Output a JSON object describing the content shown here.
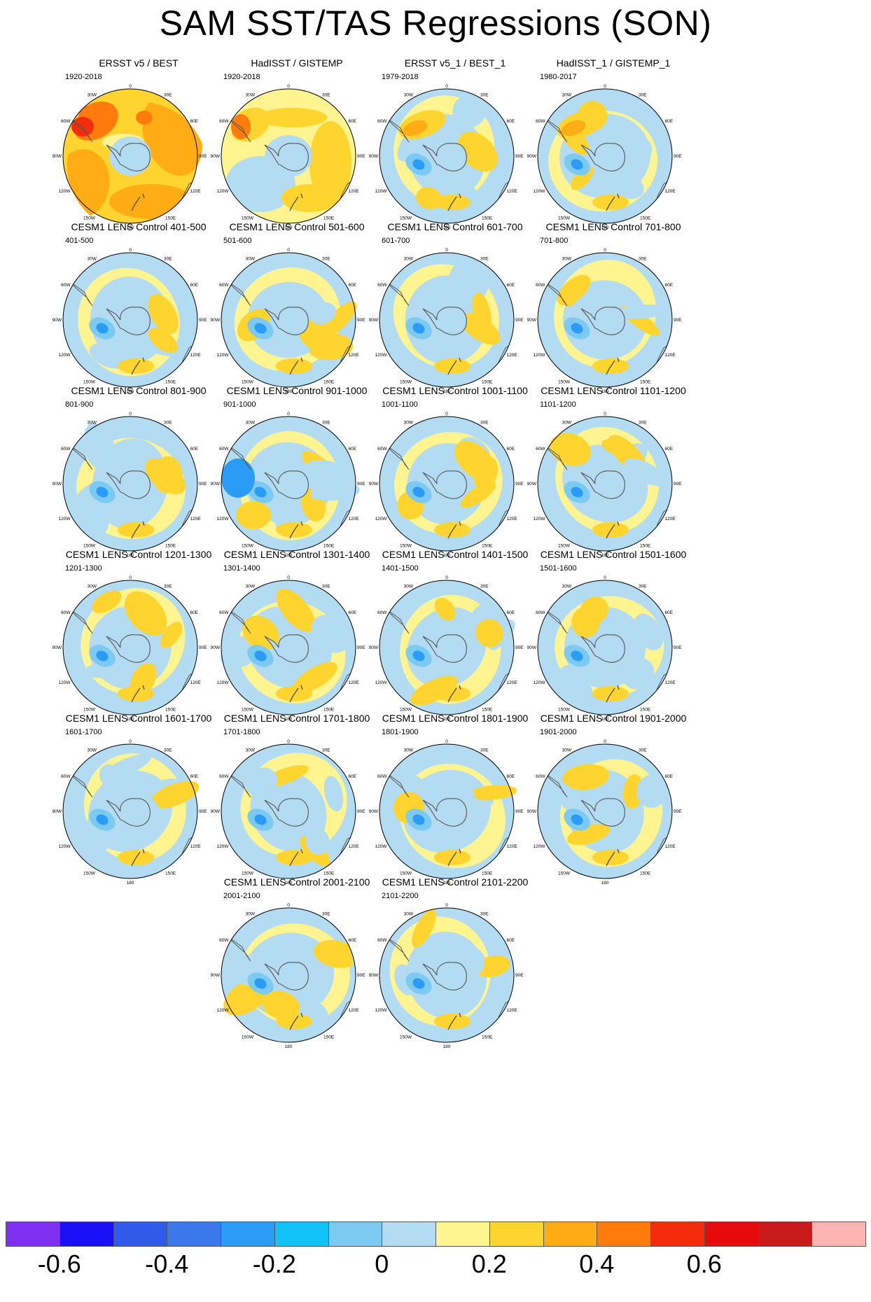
{
  "title": "SAM SST/TAS Regressions (SON)",
  "map_labels": {
    "top": "0",
    "bottom": "180",
    "left_mid": "90W",
    "right_mid": "90E",
    "ul1": "30W",
    "ur1": "30E",
    "ul2": "60W",
    "ur2": "60E",
    "ll1": "120W",
    "lr1": "120E",
    "ll2": "150W",
    "lr2": "150E"
  },
  "panels": [
    {
      "title": "ERSST v5 / BEST",
      "period": "1920-2018",
      "pattern": "obs_warm"
    },
    {
      "title": "HadISST / GISTEMP",
      "period": "1920-2018",
      "pattern": "obs_mixed"
    },
    {
      "title": "ERSST v5_1 / BEST_1",
      "period": "1979-2018",
      "pattern": "obs_recent"
    },
    {
      "title": "HadISST_1 / GISTEMP_1",
      "period": "1980-2017",
      "pattern": "obs_recent2"
    },
    {
      "title": "CESM1 LENS Control 401-500",
      "period": "401-500",
      "pattern": "model"
    },
    {
      "title": "CESM1 LENS Control 501-600",
      "period": "501-600",
      "pattern": "model"
    },
    {
      "title": "CESM1 LENS Control 601-700",
      "period": "601-700",
      "pattern": "model"
    },
    {
      "title": "CESM1 LENS Control 701-800",
      "period": "701-800",
      "pattern": "model"
    },
    {
      "title": "CESM1 LENS Control 801-900",
      "period": "801-900",
      "pattern": "model"
    },
    {
      "title": "CESM1 LENS Control 901-1000",
      "period": "901-1000",
      "pattern": "model_strong"
    },
    {
      "title": "CESM1 LENS Control 1001-1100",
      "period": "1001-1100",
      "pattern": "model"
    },
    {
      "title": "CESM1 LENS Control 1101-1200",
      "period": "1101-1200",
      "pattern": "model"
    },
    {
      "title": "CESM1 LENS Control 1201-1300",
      "period": "1201-1300",
      "pattern": "model"
    },
    {
      "title": "CESM1 LENS Control 1301-1400",
      "period": "1301-1400",
      "pattern": "model"
    },
    {
      "title": "CESM1 LENS Control 1401-1500",
      "period": "1401-1500",
      "pattern": "model"
    },
    {
      "title": "CESM1 LENS Control 1501-1600",
      "period": "1501-1600",
      "pattern": "model"
    },
    {
      "title": "CESM1 LENS Control 1601-1700",
      "period": "1601-1700",
      "pattern": "model"
    },
    {
      "title": "CESM1 LENS Control 1701-1800",
      "period": "1701-1800",
      "pattern": "model"
    },
    {
      "title": "CESM1 LENS Control 1801-1900",
      "period": "1801-1900",
      "pattern": "model"
    },
    {
      "title": "CESM1 LENS Control 1901-2000",
      "period": "1901-2000",
      "pattern": "model"
    },
    {
      "title": "CESM1 LENS Control 2001-2100",
      "period": "2001-2100",
      "pattern": "model"
    },
    {
      "title": "CESM1 LENS Control 2101-2200",
      "period": "2101-2200",
      "pattern": "model"
    }
  ],
  "colorbar": {
    "colors": [
      "#7f2ff0",
      "#1a10f5",
      "#2f5be8",
      "#3a78ec",
      "#2a9cf5",
      "#10c2f5",
      "#7ccaf2",
      "#b3dcf2",
      "#fff48f",
      "#ffd42f",
      "#ffac15",
      "#ff7c0c",
      "#f42c0b",
      "#e60a0a",
      "#c91a1a",
      "#ffb4b4"
    ],
    "tick_labels": [
      "-0.6",
      "-0.4",
      "-0.2",
      "0",
      "0.2",
      "0.4",
      "0.6"
    ],
    "tick_values": [
      -0.6,
      -0.4,
      -0.2,
      0,
      0.2,
      0.4,
      0.6
    ]
  },
  "palette": {
    "neutral_neg": "#b3dcf2",
    "neutral_pos": "#fff48f",
    "weak_warm": "#ffd42f",
    "warm": "#ffac15",
    "hot": "#ff7c0c",
    "very_hot": "#f42c0b",
    "weak_cool": "#7ccaf2",
    "cool": "#2a9cf5",
    "very_cool": "#3a78ec",
    "antarctica": "#b3dcf2",
    "coast": "#555555"
  }
}
